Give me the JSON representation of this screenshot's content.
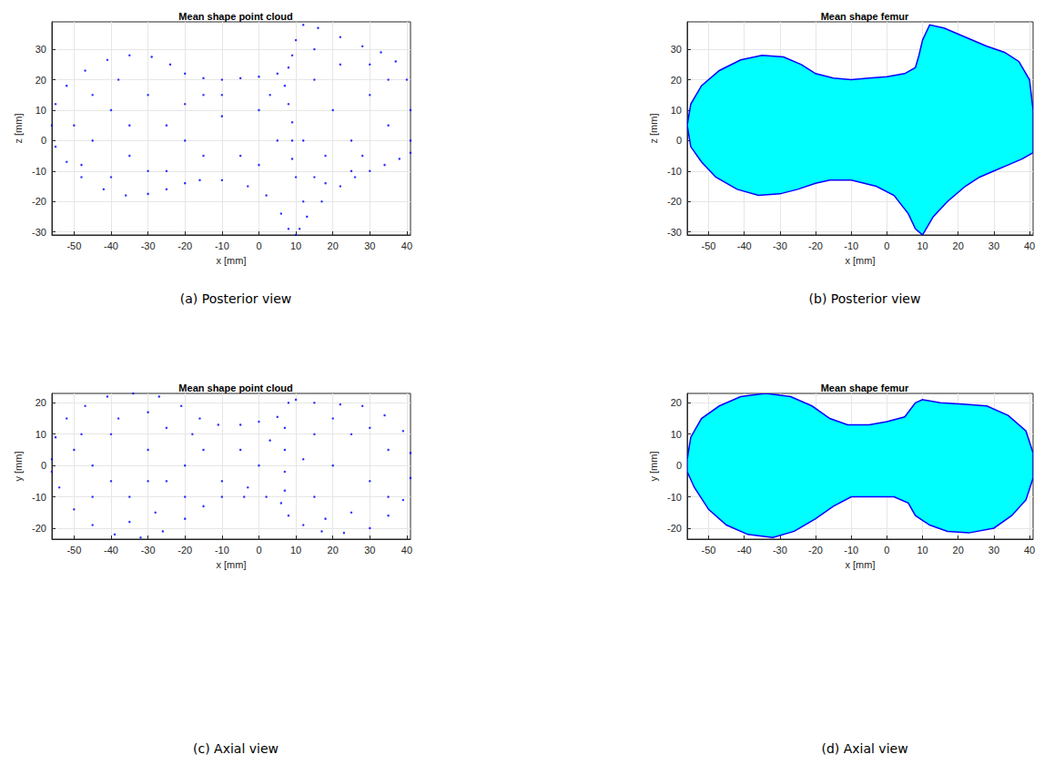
{
  "chart_data": [
    {
      "type": "scatter",
      "title": "Mean shape point cloud",
      "caption": "(a) Posterior view",
      "x_label": "x [mm]",
      "y_label": "z [mm]",
      "color": "#0000ff",
      "grid": true,
      "xlim": [
        -56,
        41
      ],
      "xticks": [
        -50,
        -40,
        -30,
        -20,
        -10,
        0,
        10,
        20,
        30,
        40
      ],
      "ylim": [
        -31,
        39
      ],
      "yticks": [
        -30,
        -20,
        -10,
        0,
        10,
        20,
        30
      ],
      "x": [
        -56,
        -55,
        -52,
        -47,
        -41,
        -35,
        -29,
        -24,
        -20,
        -15,
        -10,
        -5,
        0,
        5,
        8,
        9,
        10,
        12,
        16,
        22,
        28,
        33,
        37,
        40,
        41,
        41,
        41,
        38,
        34,
        30,
        26,
        22,
        17,
        13,
        11,
        10,
        8,
        6,
        2,
        -3,
        -10,
        -16,
        -20,
        -25,
        -30,
        -36,
        -42,
        -48,
        -52,
        -55,
        7,
        8,
        9,
        9,
        9,
        10,
        -45,
        -40,
        -35,
        -30,
        -25,
        -45,
        -38,
        -48,
        -30,
        -20,
        -20,
        -15,
        -10,
        -5,
        0,
        0,
        5,
        -10,
        -25,
        -40,
        15,
        20,
        25,
        30,
        35,
        18,
        28,
        15,
        22,
        12,
        35,
        30,
        25,
        15,
        -50,
        -35,
        -15,
        3,
        18,
        12
      ],
      "y": [
        5,
        12,
        18,
        23,
        26.5,
        28,
        27.5,
        25,
        22,
        20.5,
        20,
        20.5,
        21,
        22,
        24,
        28,
        33,
        38,
        37,
        34,
        31,
        29,
        26,
        20,
        10,
        0,
        -4,
        -6,
        -8,
        -10,
        -12,
        -15,
        -20,
        -25,
        -29,
        -31,
        -29,
        -24,
        -18,
        -15,
        -13,
        -13,
        -14,
        -16,
        -17.5,
        -18,
        -16,
        -12,
        -7,
        -2,
        18,
        12,
        6,
        0,
        -6,
        -12,
        0,
        10,
        -5,
        15,
        5,
        15,
        20,
        -8,
        -10,
        0,
        12,
        -5,
        8,
        -5,
        10,
        -8,
        0,
        15,
        -10,
        -12,
        20,
        10,
        0,
        15,
        5,
        -5,
        -5,
        30,
        25,
        0,
        20,
        25,
        -10,
        -12,
        5,
        5,
        15,
        15,
        -14,
        -20
      ]
    },
    {
      "type": "mesh",
      "title": "Mean shape femur",
      "caption": "(b) Posterior view",
      "x_label": "x [mm]",
      "y_label": "z [mm]",
      "color": "#00ffff",
      "grid": true,
      "xlim": [
        -56,
        41
      ],
      "xticks": [
        -50,
        -40,
        -30,
        -20,
        -10,
        0,
        10,
        20,
        30,
        40
      ],
      "ylim": [
        -31,
        39
      ],
      "yticks": [
        -30,
        -20,
        -10,
        0,
        10,
        20,
        30
      ],
      "x": [
        -56,
        -55,
        -52,
        -47,
        -41,
        -35,
        -29,
        -24,
        -20,
        -15,
        -10,
        -5,
        0,
        5,
        8,
        9,
        10,
        12,
        16,
        22,
        28,
        33,
        37,
        40,
        41,
        41,
        41,
        38,
        34,
        30,
        26,
        22,
        17,
        13,
        11,
        10,
        8,
        6,
        2,
        -3,
        -10,
        -16,
        -20,
        -25,
        -30,
        -36,
        -42,
        -48,
        -52,
        -55
      ],
      "y": [
        5,
        12,
        18,
        23,
        26.5,
        28,
        27.5,
        25,
        22,
        20.5,
        20,
        20.5,
        21,
        22,
        24,
        28,
        33,
        38,
        37,
        34,
        31,
        29,
        26,
        20,
        10,
        0,
        -4,
        -6,
        -8,
        -10,
        -12,
        -15,
        -20,
        -25,
        -29,
        -31,
        -29,
        -24,
        -18,
        -15,
        -13,
        -13,
        -14,
        -16,
        -17.5,
        -18,
        -16,
        -12,
        -7,
        -2
      ]
    },
    {
      "type": "scatter",
      "title": "Mean shape point cloud",
      "caption": "(c) Axial view",
      "x_label": "x [mm]",
      "y_label": "y [mm]",
      "color": "#0000ff",
      "grid": true,
      "xlim": [
        -56,
        41
      ],
      "xticks": [
        -50,
        -40,
        -30,
        -20,
        -10,
        0,
        10,
        20,
        30,
        40
      ],
      "ylim": [
        -23.5,
        23
      ],
      "yticks": [
        -20,
        -10,
        0,
        10,
        20
      ],
      "x": [
        -56,
        -55,
        -52,
        -47,
        -41,
        -34,
        -27,
        -21,
        -16,
        -11,
        -5,
        0,
        5,
        8,
        10,
        15,
        22,
        28,
        34,
        39,
        41,
        41,
        39,
        35,
        30,
        23,
        17,
        12,
        8,
        6,
        2,
        -4,
        -10,
        -15,
        -20,
        -26,
        -32,
        -39,
        -45,
        -50,
        -54,
        -56,
        7,
        7,
        7,
        7,
        -45,
        -40,
        -35,
        -30,
        -25,
        -45,
        -38,
        -30,
        -25,
        -20,
        -15,
        -10,
        -5,
        0,
        -50,
        -35,
        -28,
        -48,
        15,
        20,
        25,
        30,
        35,
        15,
        25,
        20,
        30,
        12,
        35,
        18,
        -40,
        -30,
        3,
        -3,
        -18,
        -20
      ],
      "y": [
        2,
        9,
        15,
        19,
        22,
        23,
        22,
        19,
        15,
        13,
        13,
        14,
        15.5,
        20,
        21,
        20,
        19.5,
        19,
        16,
        11,
        4,
        -4,
        -11,
        -16,
        -20,
        -21.5,
        -21,
        -19,
        -16,
        -12,
        -10,
        -10,
        -10,
        -13,
        -17,
        -21,
        -23,
        -22,
        -19,
        -14,
        -7,
        -2,
        12,
        5,
        -2,
        -8,
        0,
        10,
        -10,
        5,
        -5,
        -10,
        15,
        17,
        12,
        0,
        5,
        -5,
        5,
        0,
        5,
        -18,
        -15,
        10,
        10,
        0,
        10,
        -5,
        5,
        -10,
        -15,
        15,
        12,
        2,
        -10,
        -17,
        -5,
        -5,
        8,
        -7,
        10,
        -10
      ]
    },
    {
      "type": "mesh",
      "title": "Mean shape femur",
      "caption": "(d) Axial view",
      "x_label": "x [mm]",
      "y_label": "y [mm]",
      "color": "#00ffff",
      "grid": true,
      "xlim": [
        -56,
        41
      ],
      "xticks": [
        -50,
        -40,
        -30,
        -20,
        -10,
        0,
        10,
        20,
        30,
        40
      ],
      "ylim": [
        -23.5,
        23
      ],
      "yticks": [
        -20,
        -10,
        0,
        10,
        20
      ],
      "x": [
        -56,
        -55,
        -52,
        -47,
        -41,
        -34,
        -27,
        -21,
        -16,
        -11,
        -5,
        0,
        5,
        8,
        10,
        15,
        22,
        28,
        34,
        39,
        41,
        41,
        39,
        35,
        30,
        23,
        17,
        12,
        8,
        6,
        2,
        -4,
        -10,
        -15,
        -20,
        -26,
        -32,
        -39,
        -45,
        -50,
        -54,
        -56
      ],
      "y": [
        2,
        9,
        15,
        19,
        22,
        23,
        22,
        19,
        15,
        13,
        13,
        14,
        15.5,
        20,
        21,
        20,
        19.5,
        19,
        16,
        11,
        4,
        -4,
        -11,
        -16,
        -20,
        -21.5,
        -21,
        -19,
        -16,
        -12,
        -10,
        -10,
        -10,
        -13,
        -17,
        -21,
        -23,
        -22,
        -19,
        -14,
        -7,
        -2
      ]
    }
  ]
}
